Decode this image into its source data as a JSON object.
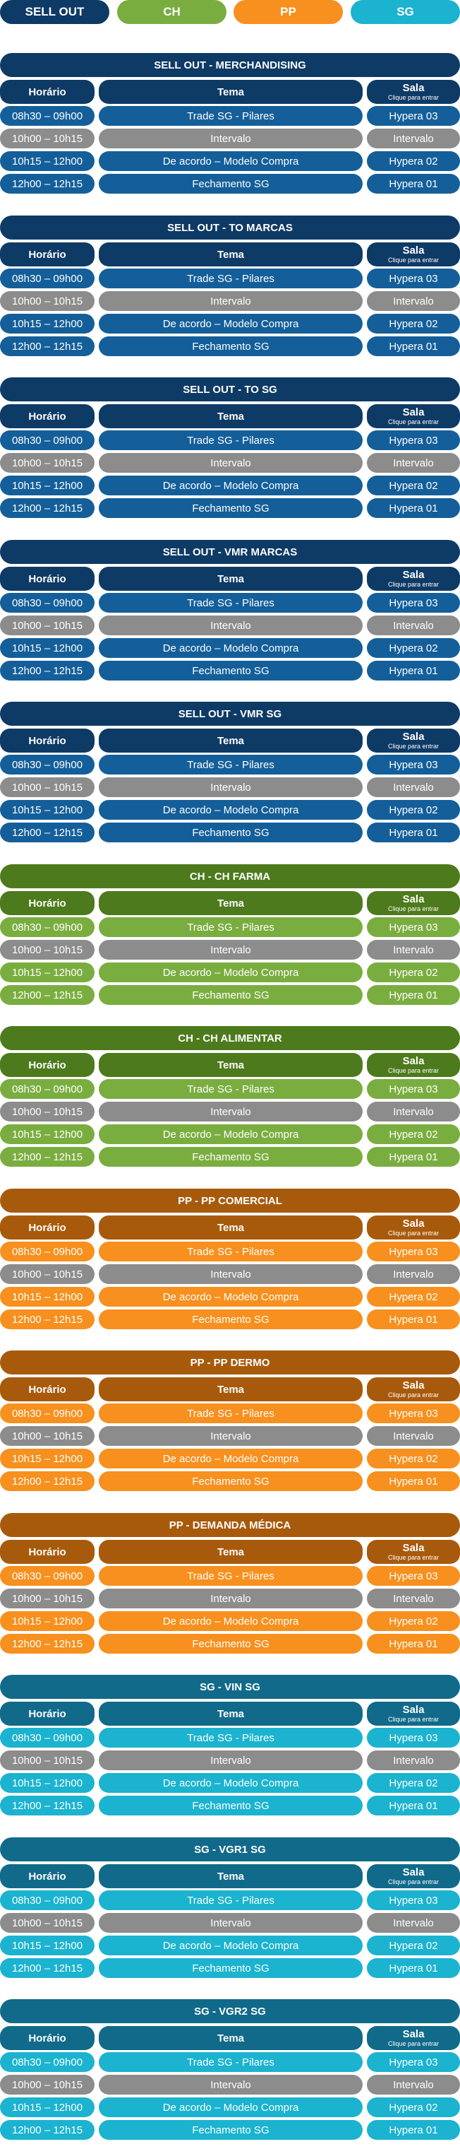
{
  "tabs": [
    {
      "label": "SELL OUT",
      "color": "#0e3a66"
    },
    {
      "label": "CH",
      "color": "#7aad3f"
    },
    {
      "label": "PP",
      "color": "#f7901e"
    },
    {
      "label": "SG",
      "color": "#1bb3cf"
    }
  ],
  "header": {
    "horario": "Horário",
    "tema": "Tema",
    "sala": "Sala",
    "sala_hint": "Clique para entrar"
  },
  "interval_color": "#8c8c8c",
  "sections": [
    {
      "title": "SELL OUT - MERCHANDISING",
      "dark": "#0e3a66",
      "light": "#145f9a"
    },
    {
      "title": "SELL OUT - TO MARCAS",
      "dark": "#0e3a66",
      "light": "#145f9a"
    },
    {
      "title": "SELL OUT - TO SG",
      "dark": "#0e3a66",
      "light": "#145f9a"
    },
    {
      "title": "SELL OUT - VMR MARCAS",
      "dark": "#0e3a66",
      "light": "#145f9a"
    },
    {
      "title": "SELL OUT - VMR SG",
      "dark": "#0e3a66",
      "light": "#145f9a"
    },
    {
      "title": "CH - CH FARMA",
      "dark": "#4d7a1c",
      "light": "#7aad3f"
    },
    {
      "title": "CH - CH ALIMENTAR",
      "dark": "#4d7a1c",
      "light": "#7aad3f"
    },
    {
      "title": "PP - PP COMERCIAL",
      "dark": "#a85a0c",
      "light": "#f7901e"
    },
    {
      "title": "PP - PP DERMO",
      "dark": "#a85a0c",
      "light": "#f7901e"
    },
    {
      "title": "PP - DEMANDA MÉDICA",
      "dark": "#a85a0c",
      "light": "#f7901e"
    },
    {
      "title": "SG - VIN SG",
      "dark": "#116a8a",
      "light": "#1bb3cf"
    },
    {
      "title": "SG - VGR1 SG",
      "dark": "#116a8a",
      "light": "#1bb3cf"
    },
    {
      "title": "SG - VGR2 SG",
      "dark": "#116a8a",
      "light": "#1bb3cf"
    }
  ],
  "rows": [
    {
      "time": "08h30 – 09h00",
      "tema": "Trade SG - Pilares",
      "sala": "Hypera 03",
      "interval": false
    },
    {
      "time": "10h00 – 10h15",
      "tema": "Intervalo",
      "sala": "Intervalo",
      "interval": true
    },
    {
      "time": "10h15 – 12h00",
      "tema": "De acordo – Modelo Compra",
      "sala": "Hypera 02",
      "interval": false
    },
    {
      "time": "12h00 – 12h15",
      "tema": "Fechamento SG",
      "sala": "Hypera 01",
      "interval": false
    }
  ]
}
